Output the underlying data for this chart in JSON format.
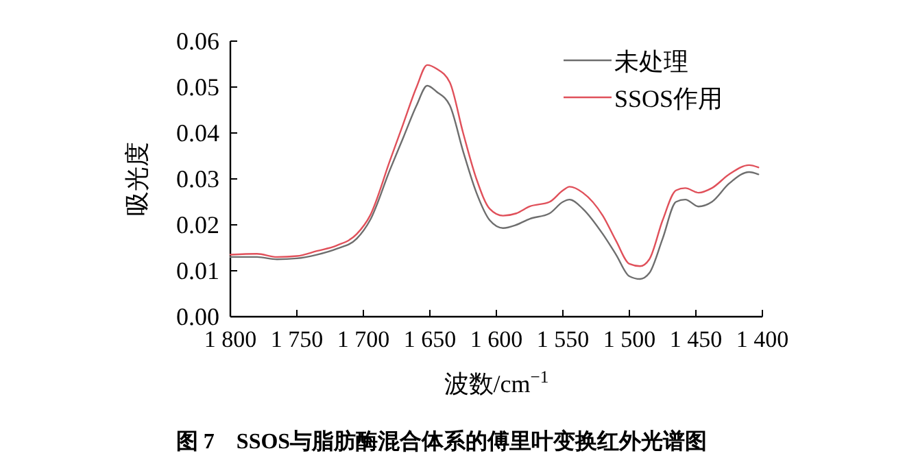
{
  "chart_data": {
    "type": "line",
    "title": "图 7　SSOS与脂肪酶混合体系的傅里叶变换红外光谱图",
    "xlabel": "波数/cm$^{−1}$",
    "ylabel": "吸光度",
    "xlim": [
      1800,
      1400
    ],
    "xticks": [
      {
        "value": 1800,
        "label": "1 800"
      },
      {
        "value": 1750,
        "label": "1 750"
      },
      {
        "value": 1700,
        "label": "1 700"
      },
      {
        "value": 1650,
        "label": "1 650"
      },
      {
        "value": 1600,
        "label": "1 600"
      },
      {
        "value": 1550,
        "label": "1 550"
      },
      {
        "value": 1500,
        "label": "1 500"
      },
      {
        "value": 1450,
        "label": "1 450"
      },
      {
        "value": 1400,
        "label": "1 400"
      }
    ],
    "ylim": [
      0,
      0.06
    ],
    "yticks": [
      {
        "value": 0,
        "label": "0.00"
      },
      {
        "value": 0.01,
        "label": "0.01"
      },
      {
        "value": 0.02,
        "label": "0.02"
      },
      {
        "value": 0.03,
        "label": "0.03"
      },
      {
        "value": 0.04,
        "label": "0.04"
      },
      {
        "value": 0.05,
        "label": "0.05"
      },
      {
        "value": 0.06,
        "label": "0.06"
      }
    ],
    "x": [
      1800,
      1780,
      1765,
      1750,
      1735,
      1720,
      1705,
      1695,
      1680,
      1670,
      1660,
      1652,
      1645,
      1635,
      1625,
      1615,
      1605,
      1595,
      1585,
      1575,
      1560,
      1550,
      1545,
      1535,
      1520,
      1510,
      1500,
      1492,
      1485,
      1475,
      1465,
      1458,
      1448,
      1438,
      1425,
      1410,
      1403
    ],
    "series": [
      {
        "name": "未处理",
        "color": "#6e6e6e",
        "values": [
          0.013,
          0.013,
          0.0125,
          0.0127,
          0.0135,
          0.0148,
          0.017,
          0.021,
          0.032,
          0.039,
          0.046,
          0.0503,
          0.049,
          0.046,
          0.036,
          0.027,
          0.021,
          0.0193,
          0.02,
          0.0213,
          0.0225,
          0.025,
          0.0255,
          0.0235,
          0.018,
          0.0135,
          0.0088,
          0.0082,
          0.0095,
          0.017,
          0.025,
          0.0255,
          0.024,
          0.025,
          0.029,
          0.0315,
          0.031
        ]
      },
      {
        "name": "SSOS作用",
        "color": "#e0505a",
        "values": [
          0.0135,
          0.0137,
          0.013,
          0.0132,
          0.0143,
          0.0155,
          0.018,
          0.022,
          0.034,
          0.042,
          0.05,
          0.0548,
          0.054,
          0.051,
          0.04,
          0.03,
          0.0235,
          0.022,
          0.0225,
          0.024,
          0.025,
          0.0275,
          0.0283,
          0.027,
          0.022,
          0.0165,
          0.0115,
          0.011,
          0.0125,
          0.021,
          0.0275,
          0.028,
          0.027,
          0.028,
          0.031,
          0.033,
          0.0325
        ]
      }
    ],
    "legend": "top right",
    "grid": false,
    "line_style": "solid"
  }
}
